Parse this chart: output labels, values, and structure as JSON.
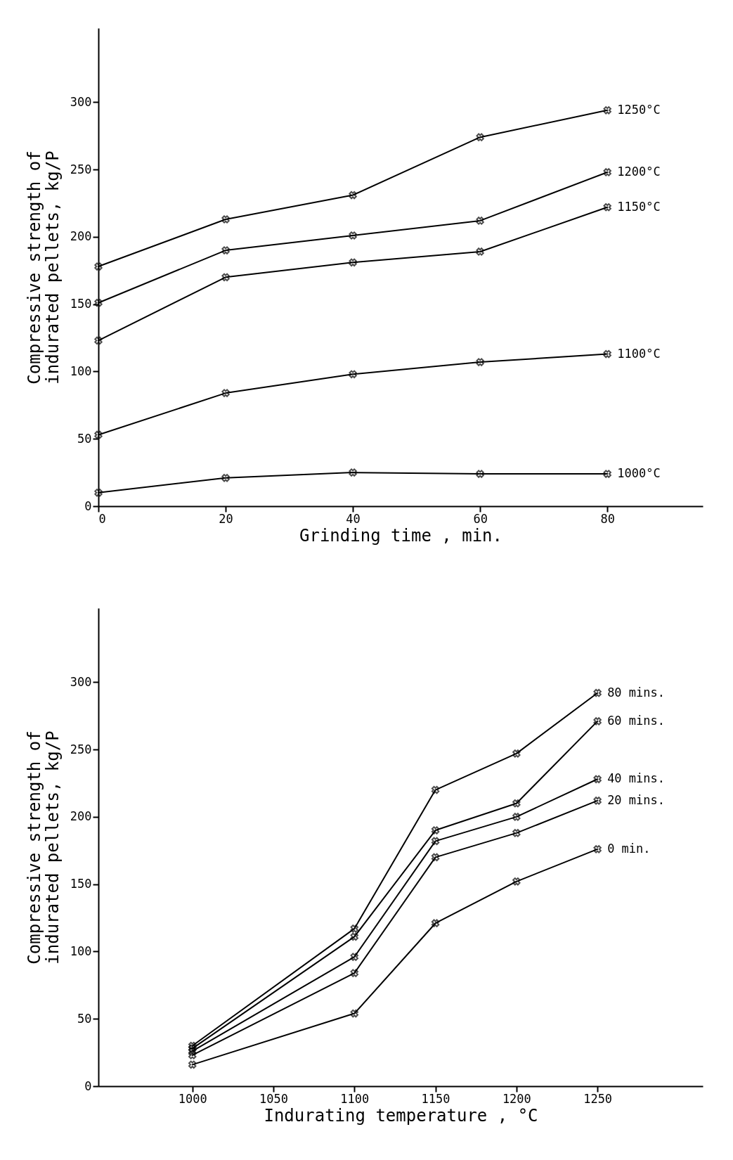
{
  "chart_data": [
    {
      "type": "line",
      "xlabel": "Grinding time , min.",
      "ylabel": "Compressive strength of\nindurated pellets, kg/P",
      "x": [
        0,
        20,
        40,
        60,
        80
      ],
      "xlim": [
        0,
        95
      ],
      "xticks": [
        0,
        20,
        40,
        60,
        80
      ],
      "ylim": [
        0,
        355
      ],
      "yticks": [
        0,
        50,
        100,
        150,
        200,
        250,
        300
      ],
      "grid": false,
      "marker": "cross",
      "line_style": "solid",
      "series": [
        {
          "name": "1250°C",
          "color": "#000000",
          "values": [
            178,
            213,
            231,
            274,
            294
          ]
        },
        {
          "name": "1200°C",
          "color": "#000000",
          "values": [
            151,
            190,
            201,
            212,
            248
          ]
        },
        {
          "name": "1150°C",
          "color": "#000000",
          "values": [
            123,
            170,
            181,
            189,
            222
          ]
        },
        {
          "name": "1100°C",
          "color": "#000000",
          "values": [
            53,
            84,
            98,
            107,
            113
          ]
        },
        {
          "name": "1000°C",
          "color": "#000000",
          "values": [
            10,
            21,
            25,
            24,
            24
          ]
        }
      ]
    },
    {
      "type": "line",
      "xlabel": "Indurating temperature , °C",
      "ylabel": "Compressive strength of\nindurated pellets, kg/P",
      "x": [
        1000,
        1100,
        1150,
        1200,
        1250
      ],
      "xlim": [
        942,
        1315
      ],
      "xticks": [
        1000,
        1050,
        1100,
        1150,
        1200,
        1250
      ],
      "ylim": [
        0,
        355
      ],
      "yticks": [
        0,
        50,
        100,
        150,
        200,
        250,
        300
      ],
      "grid": false,
      "marker": "cross",
      "line_style": "solid",
      "series": [
        {
          "name": "80 mins.",
          "color": "#000000",
          "values": [
            30,
            117,
            220,
            247,
            292
          ]
        },
        {
          "name": "60 mins.",
          "color": "#000000",
          "values": [
            28,
            111,
            190,
            210,
            271
          ]
        },
        {
          "name": "40 mins.",
          "color": "#000000",
          "values": [
            26,
            96,
            182,
            200,
            228
          ]
        },
        {
          "name": "20 mins.",
          "color": "#000000",
          "values": [
            23,
            84,
            170,
            188,
            212
          ]
        },
        {
          "name": "0 min.",
          "color": "#000000",
          "values": [
            16,
            54,
            121,
            152,
            176
          ]
        }
      ]
    }
  ]
}
